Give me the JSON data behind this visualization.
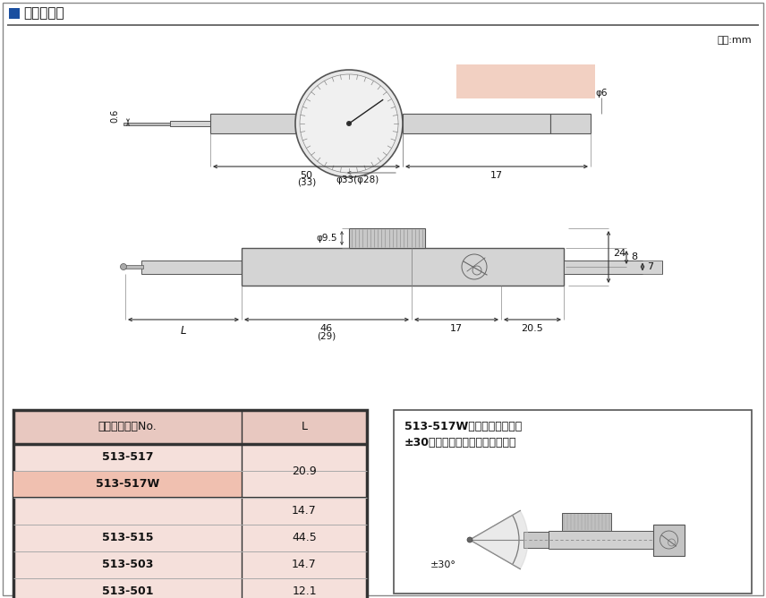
{
  "title_text": "外観寸法図",
  "unit_label": "単位:mm",
  "bg_color": "#ffffff",
  "table_header_bg": "#e8c8c0",
  "table_row_bg": "#f5e0db",
  "table_header_text": "単体・コードNo.",
  "table_col2_header": "L",
  "table_rows": [
    [
      "513-517",
      "20.9",
      false
    ],
    [
      "513-517W",
      "",
      true
    ],
    [
      "",
      "14.7",
      false
    ],
    [
      "513-515",
      "44.5",
      false
    ],
    [
      "513-503",
      "14.7",
      false
    ],
    [
      "513-501",
      "12.1",
      false
    ]
  ],
  "note_title": "513-517Wの場合は測定子を\n±30度の範囲でご使用ください。",
  "salmon_color": "#f0c8b8"
}
